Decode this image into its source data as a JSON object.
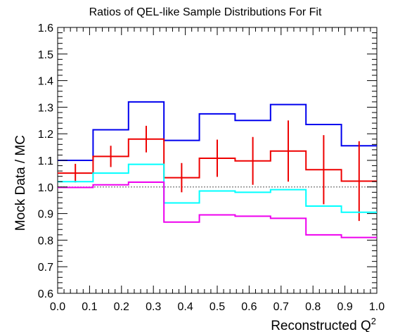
{
  "chart_data": {
    "type": "line",
    "title": "Ratios of QEL-like Sample Distributions For Fit",
    "xlabel": "Reconstructed Q",
    "xlabel_superscript": "2",
    "ylabel": "Mock Data / MC",
    "xlim": [
      0.0,
      1.0
    ],
    "ylim": [
      0.6,
      1.6
    ],
    "x_ticks": [
      "0.0",
      "0.1",
      "0.2",
      "0.3",
      "0.4",
      "0.5",
      "0.6",
      "0.7",
      "0.8",
      "0.9",
      "1.0"
    ],
    "y_ticks": [
      "0.6",
      "0.7",
      "0.8",
      "0.9",
      "1.0",
      "1.1",
      "1.2",
      "1.3",
      "1.4",
      "1.5",
      "1.6"
    ],
    "grid": false,
    "reference_line": {
      "y": 1.0,
      "style": "dotted",
      "color": "#666666"
    },
    "bin_edges": [
      0.0,
      0.111,
      0.222,
      0.333,
      0.444,
      0.556,
      0.667,
      0.778,
      0.889,
      1.0
    ],
    "series": [
      {
        "color": "#0000ee",
        "style": "step",
        "values": [
          1.1,
          1.215,
          1.32,
          1.175,
          1.275,
          1.25,
          1.31,
          1.235,
          1.155
        ]
      },
      {
        "color": "#ee0000",
        "style": "step_with_errors",
        "values": [
          1.052,
          1.115,
          1.18,
          1.035,
          1.108,
          1.098,
          1.135,
          1.065,
          1.022
        ],
        "errors": [
          0.035,
          0.04,
          0.05,
          0.055,
          0.07,
          0.09,
          0.115,
          0.13,
          0.15
        ]
      },
      {
        "color": "#00ffff",
        "style": "step",
        "values": [
          1.02,
          1.052,
          1.085,
          0.94,
          0.985,
          0.98,
          0.99,
          0.928,
          0.905
        ]
      },
      {
        "color": "#ee00ee",
        "style": "step",
        "values": [
          0.998,
          1.008,
          1.018,
          0.868,
          0.895,
          0.89,
          0.882,
          0.82,
          0.81
        ]
      }
    ]
  }
}
